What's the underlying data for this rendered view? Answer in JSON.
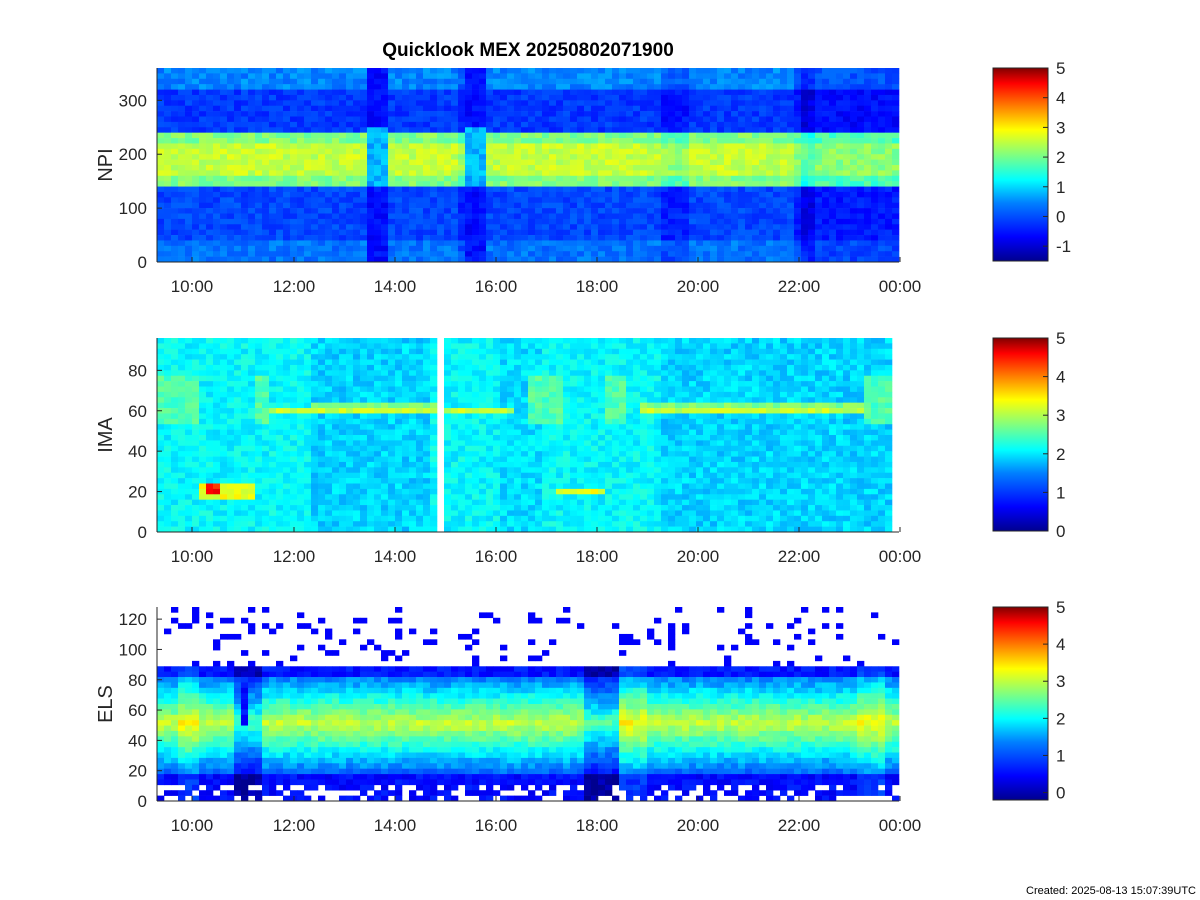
{
  "title": "Quicklook MEX 20250802071900",
  "created": "Created: 2025-08-13 15:07:39UTC",
  "colors": {
    "colormap": [
      "#00008f",
      "#0000ff",
      "#0080ff",
      "#00ffff",
      "#80ff80",
      "#ffff00",
      "#ff8000",
      "#ff0000",
      "#800000"
    ],
    "background": "#ffffff",
    "axis": "#262626"
  },
  "chart_data": [
    {
      "type": "heatmap",
      "name": "NPI",
      "ylabel": "NPI",
      "ylim": [
        0,
        360
      ],
      "yticks": [
        "0",
        "100",
        "200",
        "300"
      ],
      "xticks": [
        "10:00",
        "12:00",
        "14:00",
        "16:00",
        "18:00",
        "20:00",
        "22:00",
        "00:00"
      ],
      "colorbar": {
        "range": [
          -1.5,
          5
        ],
        "ticks": [
          "-1",
          "0",
          "1",
          "2",
          "3",
          "4",
          "5"
        ]
      }
    },
    {
      "type": "heatmap",
      "name": "IMA",
      "ylabel": "IMA",
      "ylim": [
        0,
        96
      ],
      "yticks": [
        "0",
        "20",
        "40",
        "60",
        "80"
      ],
      "xticks": [
        "10:00",
        "12:00",
        "14:00",
        "16:00",
        "18:00",
        "20:00",
        "22:00",
        "00:00"
      ],
      "colorbar": {
        "range": [
          0,
          5
        ],
        "ticks": [
          "0",
          "1",
          "2",
          "3",
          "4",
          "5"
        ]
      }
    },
    {
      "type": "heatmap",
      "name": "ELS",
      "ylabel": "ELS",
      "ylim": [
        0,
        128
      ],
      "yticks": [
        "0",
        "20",
        "40",
        "60",
        "80",
        "100",
        "120"
      ],
      "xticks": [
        "10:00",
        "12:00",
        "14:00",
        "16:00",
        "18:00",
        "20:00",
        "22:00",
        "00:00"
      ],
      "colorbar": {
        "range": [
          -0.2,
          5
        ],
        "ticks": [
          "0",
          "1",
          "2",
          "3",
          "4",
          "5"
        ]
      }
    }
  ]
}
